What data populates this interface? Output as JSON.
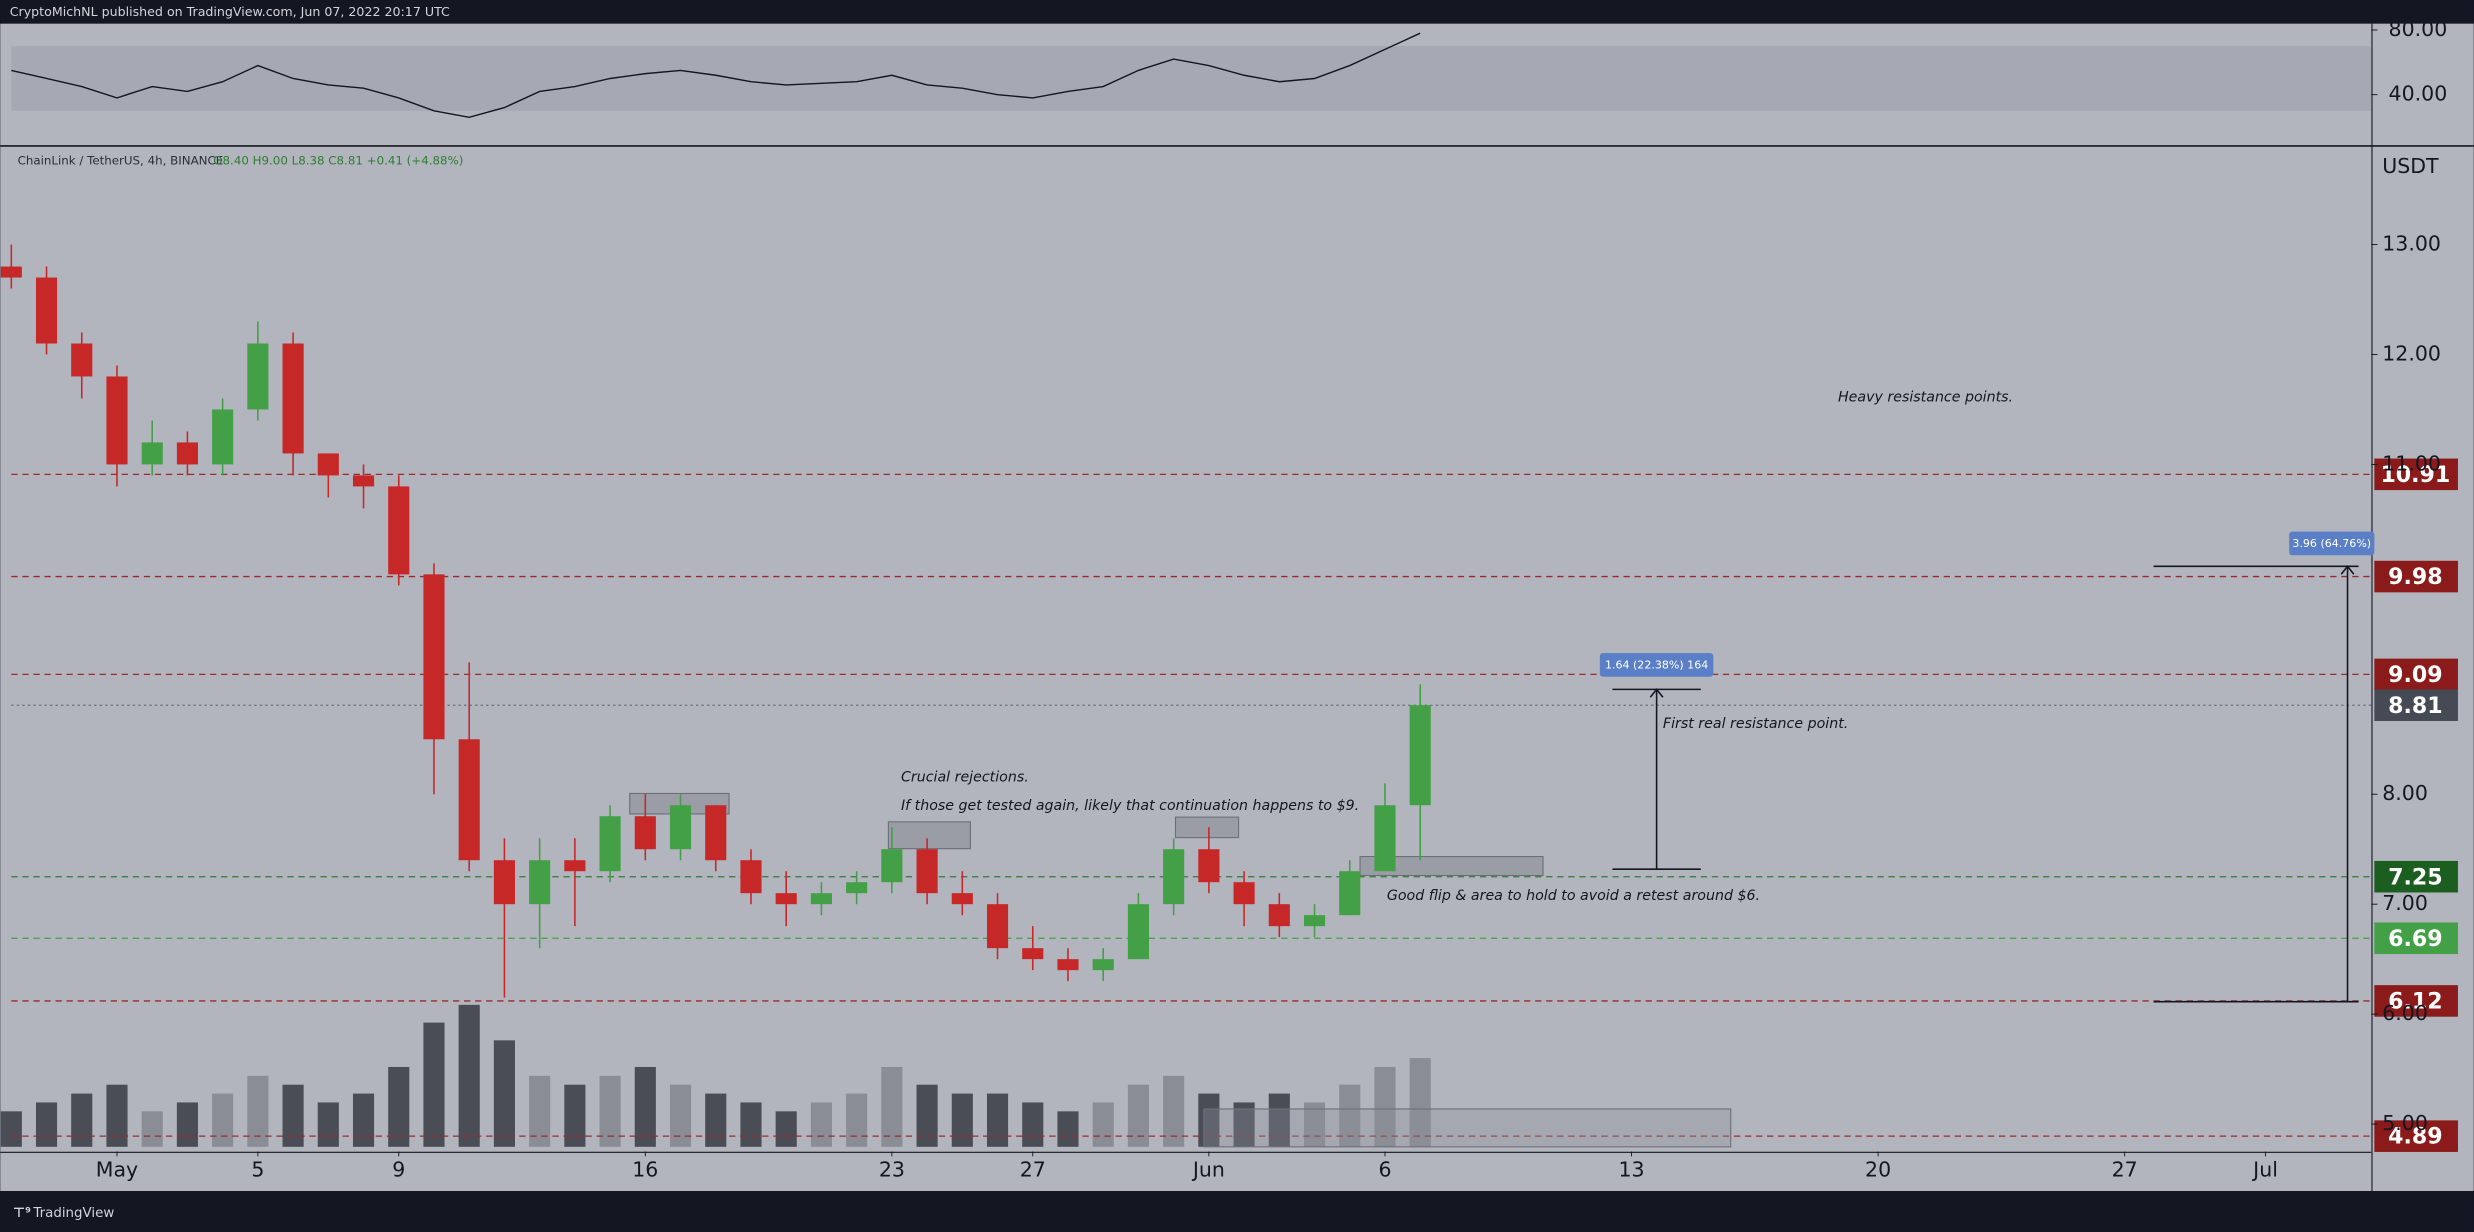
{
  "header": {
    "publisher": "CryptoMichNL published on TradingView.com, Jun 07, 2022 20:17 UTC",
    "symbol": "ChainLink / TetherUS, 4h, BINANCE",
    "ohlc": "O8.40 H9.00 L8.38 C8.81 +0.41 (+4.88%)",
    "currency": "USDT",
    "brand": "TradingView"
  },
  "chart_data": {
    "type": "candlestick",
    "x": [
      "Apr 28",
      "Apr 29",
      "Apr 30",
      "May 1",
      "May 2",
      "May 3",
      "May 4",
      "May 5",
      "May 6",
      "May 7",
      "May 8",
      "May 9",
      "May 10",
      "May 11",
      "May 12",
      "May 13",
      "May 14",
      "May 15",
      "May 16",
      "May 17",
      "May 18",
      "May 19",
      "May 20",
      "May 21",
      "May 22",
      "May 23",
      "May 24",
      "May 25",
      "May 26",
      "May 27",
      "May 28",
      "May 29",
      "May 30",
      "May 31",
      "Jun 1",
      "Jun 2",
      "Jun 3",
      "Jun 4",
      "Jun 5",
      "Jun 6",
      "Jun 7"
    ],
    "open": [
      12.8,
      12.7,
      12.1,
      11.8,
      11.0,
      11.2,
      11.0,
      11.5,
      12.1,
      11.1,
      10.9,
      10.8,
      10.0,
      8.5,
      7.4,
      7.0,
      7.4,
      7.3,
      7.8,
      7.5,
      7.9,
      7.4,
      7.1,
      7.0,
      7.1,
      7.2,
      7.5,
      7.1,
      7.0,
      6.6,
      6.5,
      6.4,
      6.5,
      7.0,
      7.5,
      7.2,
      7.0,
      6.8,
      6.9,
      7.3,
      7.9
    ],
    "high": [
      13.0,
      12.8,
      12.2,
      11.9,
      11.4,
      11.3,
      11.6,
      12.3,
      12.2,
      11.1,
      11.0,
      10.9,
      10.1,
      9.2,
      7.6,
      7.6,
      7.6,
      7.9,
      8.0,
      8.0,
      7.9,
      7.5,
      7.3,
      7.2,
      7.3,
      7.7,
      7.6,
      7.3,
      7.1,
      6.8,
      6.6,
      6.6,
      7.1,
      7.6,
      7.7,
      7.3,
      7.1,
      7.0,
      7.4,
      8.1,
      9.0
    ],
    "low": [
      12.6,
      12.0,
      11.6,
      10.8,
      10.9,
      10.9,
      10.9,
      11.4,
      10.9,
      10.7,
      10.6,
      9.9,
      8.0,
      7.3,
      6.15,
      6.6,
      6.8,
      7.2,
      7.4,
      7.4,
      7.3,
      7.0,
      6.8,
      6.9,
      7.0,
      7.1,
      7.0,
      6.9,
      6.5,
      6.4,
      6.3,
      6.3,
      6.5,
      6.9,
      7.1,
      6.8,
      6.7,
      6.7,
      6.9,
      7.3,
      7.4
    ],
    "close": [
      12.7,
      12.1,
      11.8,
      11.0,
      11.2,
      11.0,
      11.5,
      12.1,
      11.1,
      10.9,
      10.8,
      10.0,
      8.5,
      7.4,
      7.0,
      7.4,
      7.3,
      7.8,
      7.5,
      7.9,
      7.4,
      7.1,
      7.0,
      7.1,
      7.2,
      7.5,
      7.1,
      7.0,
      6.6,
      6.5,
      6.4,
      6.5,
      7.0,
      7.5,
      7.2,
      7.0,
      6.8,
      6.9,
      7.3,
      7.9,
      8.81
    ],
    "volume": [
      20,
      25,
      30,
      35,
      20,
      25,
      30,
      40,
      35,
      25,
      30,
      45,
      70,
      80,
      60,
      40,
      35,
      40,
      45,
      35,
      30,
      25,
      20,
      25,
      30,
      45,
      35,
      30,
      30,
      25,
      20,
      25,
      35,
      40,
      30,
      25,
      30,
      25,
      35,
      45,
      50
    ],
    "up_color": "#43a047",
    "down_color": "#c62828",
    "xlim": [
      "Apr 28",
      "Jul 4"
    ],
    "xticks": [
      {
        "value": "May 1",
        "label": "May"
      },
      {
        "value": "May 5",
        "label": "5"
      },
      {
        "value": "May 9",
        "label": "9"
      },
      {
        "value": "May 16",
        "label": "16"
      },
      {
        "value": "May 23",
        "label": "23"
      },
      {
        "value": "May 27",
        "label": "27"
      },
      {
        "value": "Jun 1",
        "label": "Jun"
      },
      {
        "value": "Jun 6",
        "label": "6"
      },
      {
        "value": "Jun 13",
        "label": "13"
      },
      {
        "value": "Jun 20",
        "label": "20"
      },
      {
        "value": "Jun 27",
        "label": "27"
      },
      {
        "value": "Jul 1",
        "label": "Jul"
      }
    ],
    "ylim": [
      4.75,
      13.89
    ],
    "yticks": [
      {
        "value": 13,
        "label": "13.00"
      },
      {
        "value": 12,
        "label": "12.00"
      },
      {
        "value": 11,
        "label": "11.00"
      },
      {
        "value": 8,
        "label": "8.00"
      },
      {
        "value": 7,
        "label": "7.00"
      },
      {
        "value": 6,
        "label": "6.00"
      },
      {
        "value": 5,
        "label": "5.00"
      }
    ],
    "levels": [
      {
        "value": 10.91,
        "color": "#8b1a1a",
        "line": "#9c2a2a"
      },
      {
        "value": 9.98,
        "color": "#8b1a1a",
        "line": "#9c2a2a"
      },
      {
        "value": 9.09,
        "color": "#8b1a1a",
        "line": "#9c2a2a"
      },
      {
        "value": 8.81,
        "color": "#454a55",
        "line": "#6b6f78"
      },
      {
        "value": 7.25,
        "color": "#1b5e20",
        "line": "#2e7d32"
      },
      {
        "value": 6.69,
        "color": "#43a047",
        "line": "#43a047"
      },
      {
        "value": 6.12,
        "color": "#8b1a1a",
        "line": "#9c2a2a"
      },
      {
        "value": 4.89,
        "color": "#8b1a1a",
        "line": "#9c2a2a"
      }
    ],
    "rsi": {
      "values": [
        55,
        50,
        45,
        38,
        45,
        42,
        48,
        58,
        50,
        46,
        44,
        38,
        30,
        26,
        32,
        42,
        45,
        50,
        53,
        55,
        52,
        48,
        46,
        47,
        48,
        52,
        46,
        44,
        40,
        38,
        42,
        45,
        55,
        62,
        58,
        52,
        48,
        50,
        58,
        68,
        78
      ],
      "ylim": [
        8.8,
        83.9
      ],
      "band": [
        30,
        70
      ],
      "yticks": [
        {
          "value": 80,
          "label": "80.00"
        },
        {
          "value": 40,
          "label": "40.00"
        }
      ]
    },
    "measures": [
      {
        "label": "1.64 (22.38%) 164"
      },
      {
        "label": "3.96 (64.76%)"
      }
    ],
    "annotations": [
      "Heavy resistance points.",
      "Crucial rejections.",
      "If those get tested again, likely that continuation happens to $9.",
      "First real resistance point.",
      "Good flip & area to hold to avoid a retest around $6."
    ]
  }
}
